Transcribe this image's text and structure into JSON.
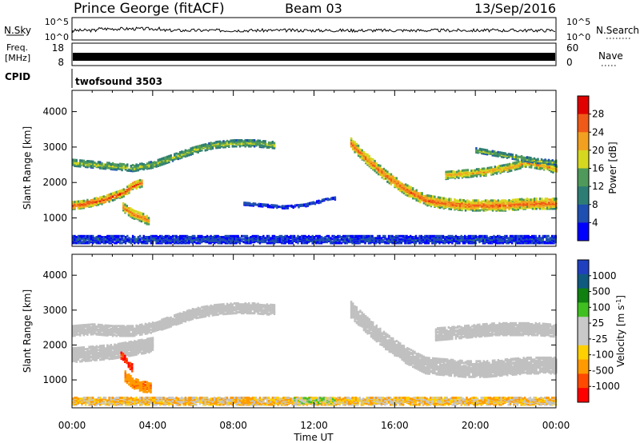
{
  "header": {
    "station": "Prince George (fitACF)",
    "beam": "Beam 03",
    "date": "13/Sep/2016"
  },
  "noise_panel": {
    "left_label": "N.Sky",
    "left_ticks": [
      "10^5",
      "10^0"
    ],
    "right_ticks": [
      "10^5",
      "10^0"
    ],
    "right_label": "N.Search"
  },
  "freq_panel": {
    "left_label_1": "Freq.",
    "left_label_2": "[MHz]",
    "left_ticks": [
      "18",
      "8"
    ],
    "right_ticks": [
      "60",
      "0"
    ],
    "right_label": "Nave"
  },
  "cpid": {
    "label": "CPID",
    "program": "twofsound 3503"
  },
  "colors": {
    "power": [
      "#0000ff",
      "#1f4fb0",
      "#2e7d74",
      "#4f9a5a",
      "#d6d820",
      "#f2a020",
      "#f05a18",
      "#e00000"
    ],
    "velocity": [
      "#ff0000",
      "#ff4a00",
      "#ff9a00",
      "#ffd000",
      "#c8c8c8",
      "#c8c8c8",
      "#40c020",
      "#108010",
      "#105a80",
      "#2040c0"
    ],
    "ground_scatter": "#c0c0c0"
  },
  "chart_data": [
    {
      "type": "heatmap",
      "title": "",
      "xlabel": "Time UT",
      "ylabel": "Slant Range [km]",
      "x_ticks": [
        "00:00",
        "04:00",
        "08:00",
        "12:00",
        "16:00",
        "20:00",
        "00:00"
      ],
      "y_ticks": [
        "1000",
        "2000",
        "3000",
        "4000"
      ],
      "ylim": [
        200,
        4600
      ],
      "xlim_hours": [
        0,
        24
      ],
      "colorbar_label": "Power [dB]",
      "colorbar_ticks": [
        "4",
        "8",
        "12",
        "16",
        "20",
        "24",
        "28"
      ],
      "bands": [
        {
          "x": [
            0.0,
            0.5,
            1.5,
            2.5,
            3.0,
            3.5
          ],
          "y": [
            1350,
            1380,
            1500,
            1700,
            1900,
            2000
          ],
          "width": 220,
          "power": 27
        },
        {
          "x": [
            2.5,
            3.0,
            3.5,
            3.8
          ],
          "y": [
            1300,
            1100,
            1000,
            900
          ],
          "width": 250,
          "power": 25
        },
        {
          "x": [
            0.0,
            1.0,
            2.0,
            3.0,
            4.0,
            5.0,
            6.0,
            7.0,
            8.0,
            9.0,
            10.0
          ],
          "y": [
            2550,
            2500,
            2450,
            2400,
            2500,
            2700,
            2900,
            3050,
            3100,
            3100,
            3050
          ],
          "width": 180,
          "power": 17
        },
        {
          "x": [
            13.8,
            14.5,
            15.5,
            16.5,
            17.5,
            18.5,
            19.5,
            20.5,
            21.5,
            22.5,
            24.0
          ],
          "y": [
            3100,
            2700,
            2200,
            1800,
            1500,
            1400,
            1350,
            1350,
            1350,
            1400,
            1400
          ],
          "width": 300,
          "power": 26
        },
        {
          "x": [
            18.5,
            19.5,
            20.5,
            21.5,
            22.5,
            23.5,
            24.0
          ],
          "y": [
            2200,
            2250,
            2300,
            2400,
            2550,
            2450,
            2350
          ],
          "width": 220,
          "power": 22
        },
        {
          "x": [
            20.0,
            21.0,
            22.0,
            23.0,
            24.0
          ],
          "y": [
            2900,
            2800,
            2700,
            2600,
            2550
          ],
          "width": 120,
          "power": 16
        },
        {
          "x": [
            8.5,
            9.5,
            10.5,
            11.5,
            12.5,
            13.0
          ],
          "y": [
            1400,
            1350,
            1300,
            1350,
            1500,
            1550
          ],
          "width": 80,
          "power": 6
        },
        {
          "x": [
            0.0,
            24.0
          ],
          "y": [
            380,
            380
          ],
          "width": 200,
          "power": 6
        }
      ]
    },
    {
      "type": "heatmap",
      "title": "",
      "xlabel": "Time UT",
      "ylabel": "Slant Range [km]",
      "x_ticks": [
        "00:00",
        "04:00",
        "08:00",
        "12:00",
        "16:00",
        "20:00",
        "00:00"
      ],
      "y_ticks": [
        "1000",
        "2000",
        "3000",
        "4000"
      ],
      "ylim": [
        200,
        4600
      ],
      "xlim_hours": [
        0,
        24
      ],
      "colorbar_label": "Velocity [m s^-1]",
      "colorbar_ticks": [
        "1000",
        "500",
        "100",
        "25",
        "-25",
        "-100",
        "-500",
        "-1000"
      ],
      "bands": [
        {
          "x": [
            0.0,
            1.0,
            2.0,
            3.0,
            4.0,
            5.0,
            6.0,
            7.0,
            8.0,
            9.0,
            10.0
          ],
          "y": [
            2400,
            2450,
            2400,
            2400,
            2500,
            2700,
            2900,
            3000,
            3050,
            3050,
            3000
          ],
          "width": 300,
          "velocity": 0
        },
        {
          "x": [
            0.0,
            1.0,
            2.0,
            3.0,
            4.0
          ],
          "y": [
            1700,
            1750,
            1800,
            1900,
            2000
          ],
          "width": 400,
          "velocity": 0
        },
        {
          "x": [
            13.8,
            14.5,
            15.5,
            16.5,
            17.5,
            18.5,
            19.5,
            20.5,
            21.5,
            22.5,
            24.0
          ],
          "y": [
            3000,
            2600,
            2100,
            1700,
            1400,
            1350,
            1300,
            1300,
            1350,
            1400,
            1400
          ],
          "width": 450,
          "velocity": 0
        },
        {
          "x": [
            18.0,
            19.0,
            20.0,
            21.0,
            22.0,
            23.0,
            24.0
          ],
          "y": [
            2300,
            2350,
            2400,
            2450,
            2450,
            2450,
            2400
          ],
          "width": 350,
          "velocity": 0
        },
        {
          "x": [
            2.6,
            3.0,
            3.5,
            3.9
          ],
          "y": [
            1100,
            900,
            800,
            780
          ],
          "width": 300,
          "velocity": -400
        },
        {
          "x": [
            2.4,
            2.7,
            3.0
          ],
          "y": [
            1700,
            1500,
            1300
          ],
          "width": 200,
          "velocity": -1000
        },
        {
          "x": [
            0.0,
            24.0
          ],
          "y": [
            380,
            380
          ],
          "width": 200,
          "velocity": -60
        },
        {
          "x": [
            11.0,
            12.0,
            13.0
          ],
          "y": [
            400,
            400,
            400
          ],
          "width": 150,
          "velocity": 60
        }
      ]
    }
  ]
}
